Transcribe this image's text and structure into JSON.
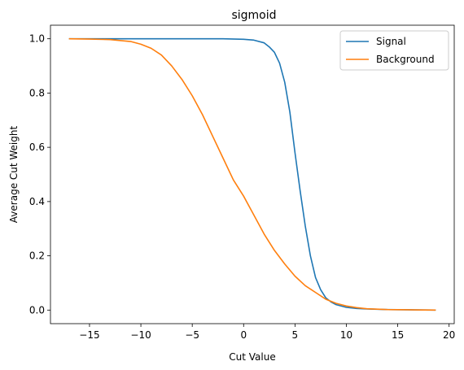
{
  "chart_data": {
    "type": "line",
    "title": "sigmoid",
    "xlabel": "Cut Value",
    "ylabel": "Average Cut Weight",
    "xlim": [
      -18.8,
      20.5
    ],
    "ylim": [
      -0.05,
      1.05
    ],
    "xticks": [
      -15,
      -10,
      -5,
      0,
      5,
      10,
      15,
      20
    ],
    "yticks": [
      0.0,
      0.2,
      0.4,
      0.6,
      0.8,
      1.0
    ],
    "grid": false,
    "legend": "top-right",
    "series": [
      {
        "name": "Signal",
        "color": "#1f77b4",
        "x": [
          -17,
          -10,
          -5,
          -2,
          0,
          1,
          2,
          2.5,
          3,
          3.5,
          4,
          4.5,
          5,
          5.5,
          6,
          6.5,
          7,
          7.5,
          8,
          8.5,
          9,
          10,
          11,
          12,
          14,
          16,
          18.7
        ],
        "y": [
          1.0,
          1.0,
          1.0,
          1.0,
          0.998,
          0.995,
          0.985,
          0.97,
          0.95,
          0.91,
          0.84,
          0.73,
          0.58,
          0.44,
          0.31,
          0.2,
          0.12,
          0.075,
          0.045,
          0.03,
          0.02,
          0.01,
          0.006,
          0.004,
          0.002,
          0.001,
          0.0
        ]
      },
      {
        "name": "Background",
        "color": "#ff7f0e",
        "x": [
          -17,
          -15,
          -13,
          -11,
          -10,
          -9,
          -8,
          -7,
          -6,
          -5,
          -4,
          -3,
          -2,
          -1,
          0,
          1,
          2,
          3,
          4,
          5,
          6,
          7,
          8,
          9,
          10,
          11,
          12,
          14,
          16,
          18.7
        ],
        "y": [
          1.0,
          0.999,
          0.997,
          0.99,
          0.98,
          0.965,
          0.94,
          0.9,
          0.85,
          0.79,
          0.72,
          0.64,
          0.56,
          0.48,
          0.42,
          0.35,
          0.28,
          0.22,
          0.17,
          0.125,
          0.09,
          0.065,
          0.04,
          0.025,
          0.015,
          0.009,
          0.005,
          0.002,
          0.001,
          0.0
        ]
      }
    ]
  }
}
